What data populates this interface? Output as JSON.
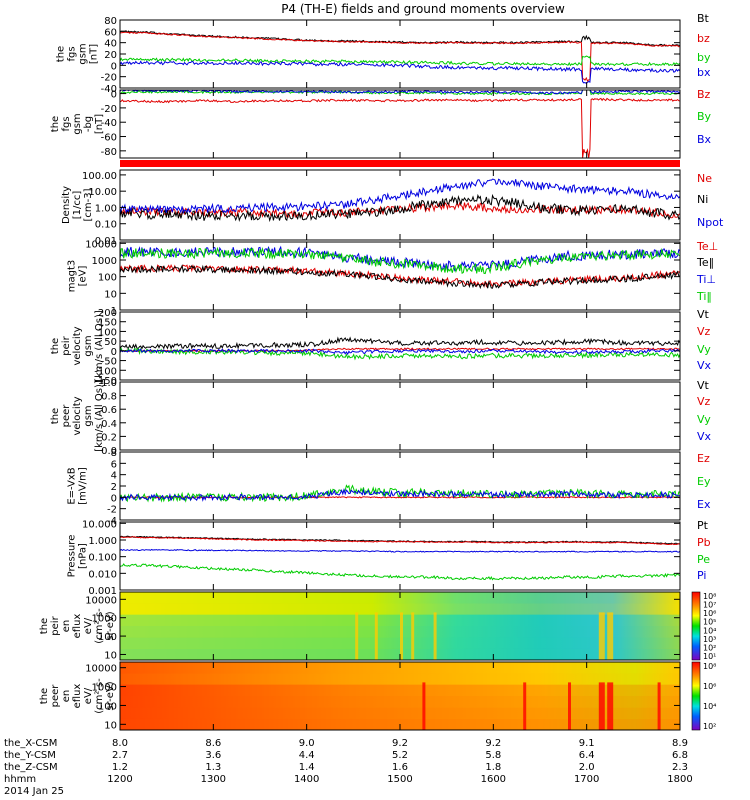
{
  "title": "P4 (TH-E) fields and ground moments overview",
  "colors": {
    "black": "#000000",
    "red": "#e00000",
    "green": "#00cc00",
    "blue": "#0000e0"
  },
  "chart_data": [
    {
      "type": "line",
      "id": "fgs_gsm",
      "ylabel": [
        "the",
        "fgs",
        "gsm",
        "[nT]"
      ],
      "ylim": [
        -40,
        80
      ],
      "yticks": [
        "80",
        "60",
        "40",
        "20",
        "0",
        "-20",
        "-40"
      ],
      "tick_values": [
        80,
        60,
        40,
        20,
        0,
        -20,
        -40
      ],
      "series": [
        {
          "name": "Bt",
          "color": "black",
          "values": [
            60,
            58,
            55,
            52,
            50,
            48,
            46,
            44,
            43,
            42,
            41,
            40,
            41,
            40,
            40,
            41,
            42,
            40,
            40,
            36,
            35
          ],
          "noise": 1.5,
          "spike": {
            "from": 6,
            "to": 48
          }
        },
        {
          "name": "bz",
          "color": "red",
          "values": [
            58,
            57,
            54,
            51,
            49,
            47,
            45,
            43,
            42,
            41,
            40,
            39,
            40,
            39,
            39,
            40,
            41,
            39,
            39,
            35,
            34
          ],
          "noise": 1.2,
          "spike": {
            "from": 4,
            "to": -25
          }
        },
        {
          "name": "by",
          "color": "green",
          "values": [
            10,
            10,
            10,
            9,
            9,
            8,
            8,
            7,
            7,
            6,
            6,
            5,
            4,
            3,
            3,
            2,
            2,
            2,
            2,
            2,
            2
          ],
          "noise": 2.5,
          "spike": {
            "from": 2,
            "to": 15
          }
        },
        {
          "name": "bx",
          "color": "blue",
          "values": [
            4,
            4,
            4,
            4,
            4,
            3,
            3,
            2,
            2,
            1,
            0,
            -2,
            -4,
            -5,
            -5,
            -6,
            -7,
            -6,
            -8,
            -9,
            -10
          ],
          "noise": 3,
          "spike": {
            "from": -8,
            "to": -30
          }
        }
      ]
    },
    {
      "type": "line",
      "id": "fgs_gsm_bg",
      "ylabel": [
        "the",
        "fgs",
        "gsm",
        "-bg",
        "[nT]"
      ],
      "ylim": [
        -90,
        5
      ],
      "yticks": [
        "0",
        "-20",
        "-40",
        "-60",
        "-80"
      ],
      "tick_values": [
        0,
        -20,
        -40,
        -60,
        -80
      ],
      "series": [
        {
          "name": "Bz",
          "color": "red",
          "values": [
            -10,
            -11,
            -11,
            -10,
            -11,
            -10,
            -10,
            -10,
            -9,
            -10,
            -10,
            -9,
            -9,
            -10,
            -9,
            -9,
            -9,
            -8,
            -9,
            -9,
            -9
          ],
          "noise": 1.5,
          "spike": {
            "from": -10,
            "to": -85
          }
        },
        {
          "name": "By",
          "color": "green",
          "values": [
            2,
            2,
            3,
            2,
            2,
            2,
            2,
            2,
            2,
            1,
            1,
            1,
            0,
            0,
            0,
            0,
            0,
            0,
            0,
            0,
            0
          ],
          "noise": 1.5,
          "spike": {
            "from": 0,
            "to": 8
          }
        },
        {
          "name": "Bx",
          "color": "blue",
          "values": [
            5,
            4,
            4,
            4,
            3,
            3,
            3,
            3,
            2,
            2,
            3,
            3,
            2,
            2,
            2,
            1,
            1,
            2,
            3,
            3,
            3
          ],
          "noise": 1.5,
          "spike": {
            "from": 2,
            "to": 10
          }
        }
      ]
    },
    {
      "type": "line",
      "id": "density",
      "scale": "log",
      "ylabel": [
        "Density",
        "[1/cc]",
        "[cm-3]"
      ],
      "ylim": [
        0.01,
        200
      ],
      "yticks": [
        "100.00",
        "10.00",
        "1.00",
        "0.10",
        "0.01"
      ],
      "tick_values": [
        100,
        10,
        1,
        0.1,
        0.01
      ],
      "series": [
        {
          "name": "Ne",
          "color": "red",
          "values": [
            0.7,
            0.6,
            0.5,
            0.5,
            0.5,
            0.5,
            0.4,
            0.5,
            0.5,
            0.6,
            0.8,
            1.0,
            1.2,
            1.0,
            0.8,
            0.8,
            0.7,
            0.7,
            0.8,
            0.5,
            0.3
          ],
          "noise": 0.25
        },
        {
          "name": "Ni",
          "color": "black",
          "values": [
            0.5,
            0.4,
            0.35,
            0.3,
            0.3,
            0.3,
            0.3,
            0.35,
            0.4,
            0.5,
            0.8,
            1.5,
            2.5,
            3.0,
            2.0,
            1.0,
            0.7,
            0.7,
            0.9,
            0.5,
            0.3
          ],
          "noise": 0.3
        },
        {
          "name": "Npot",
          "color": "blue",
          "values": [
            0.8,
            0.8,
            0.8,
            0.8,
            0.9,
            1.0,
            1.0,
            1.2,
            1.5,
            2.5,
            5,
            10,
            20,
            30,
            40,
            20,
            15,
            12,
            10,
            6,
            3
          ],
          "noise": 0.25
        }
      ]
    },
    {
      "type": "line",
      "id": "temperature",
      "scale": "log",
      "ylabel": [
        "magt3",
        "[eV]"
      ],
      "ylim": [
        1,
        12000
      ],
      "yticks": [
        "10000",
        "1000",
        "100",
        "10",
        "1"
      ],
      "tick_values": [
        10000,
        1000,
        100,
        10,
        1
      ],
      "series": [
        {
          "name": "Te⊥",
          "color": "red",
          "values": [
            300,
            300,
            320,
            300,
            280,
            260,
            250,
            200,
            150,
            120,
            80,
            60,
            50,
            40,
            40,
            50,
            60,
            70,
            80,
            120,
            150
          ],
          "noise": 0.2
        },
        {
          "name": "Te‖",
          "color": "black",
          "values": [
            280,
            280,
            300,
            280,
            260,
            240,
            230,
            180,
            140,
            110,
            70,
            50,
            40,
            30,
            35,
            45,
            55,
            65,
            70,
            100,
            130
          ],
          "noise": 0.2
        },
        {
          "name": "Ti⊥",
          "color": "blue",
          "values": [
            3000,
            3000,
            3000,
            3000,
            3000,
            3000,
            3000,
            2500,
            1500,
            1000,
            700,
            500,
            400,
            400,
            600,
            1200,
            1800,
            2000,
            2200,
            2400,
            2500
          ],
          "noise": 0.3
        },
        {
          "name": "Ti‖",
          "color": "green",
          "values": [
            2500,
            2500,
            2500,
            2500,
            2500,
            2500,
            2400,
            2000,
            1200,
            800,
            600,
            400,
            300,
            300,
            500,
            1000,
            1500,
            1800,
            2000,
            2200,
            2300
          ],
          "noise": 0.3
        }
      ]
    },
    {
      "type": "line",
      "id": "peir_velocity",
      "ylabel": [
        "the",
        "peir",
        "velocity",
        "gsm",
        "[km/s (All Qs)]"
      ],
      "ylim": [
        -150,
        200
      ],
      "yticks": [
        "200",
        "150",
        "100",
        "50",
        "0",
        "-50",
        "-100",
        "-150"
      ],
      "tick_values": [
        200,
        150,
        100,
        50,
        0,
        -50,
        -100,
        -150
      ],
      "series": [
        {
          "name": "Vt",
          "color": "black",
          "values": [
            20,
            20,
            25,
            25,
            25,
            30,
            30,
            35,
            60,
            50,
            40,
            40,
            40,
            45,
            40,
            40,
            45,
            50,
            40,
            40,
            40
          ],
          "noise": 12
        },
        {
          "name": "Vz",
          "color": "red",
          "values": [
            0,
            0,
            0,
            0,
            0,
            0,
            0,
            5,
            10,
            10,
            10,
            10,
            10,
            10,
            10,
            10,
            10,
            10,
            10,
            10,
            10
          ],
          "noise": 4
        },
        {
          "name": "Vy",
          "color": "green",
          "values": [
            0,
            0,
            -5,
            -5,
            -5,
            -10,
            -10,
            -15,
            -30,
            -30,
            -25,
            -25,
            -30,
            -25,
            -25,
            -25,
            -25,
            -20,
            -20,
            -20,
            -20
          ],
          "noise": 12
        },
        {
          "name": "Vx",
          "color": "blue",
          "values": [
            0,
            0,
            0,
            0,
            0,
            0,
            0,
            0,
            -10,
            -5,
            0,
            0,
            -5,
            0,
            0,
            -5,
            -5,
            -5,
            -5,
            0,
            0
          ],
          "noise": 8
        }
      ]
    },
    {
      "type": "line",
      "id": "peer_velocity",
      "ylabel": [
        "the",
        "peer",
        "velocity",
        "gsm",
        "[km/s (All Qs)]"
      ],
      "ylim": [
        0,
        1.0
      ],
      "yticks": [
        "1.0",
        "0.8",
        "0.6",
        "0.4",
        "0.2",
        "0.0"
      ],
      "tick_values": [
        1.0,
        0.8,
        0.6,
        0.4,
        0.2,
        0.0
      ],
      "series": [
        {
          "name": "Vt",
          "color": "black",
          "values": []
        },
        {
          "name": "Vz",
          "color": "red",
          "values": []
        },
        {
          "name": "Vy",
          "color": "green",
          "values": []
        },
        {
          "name": "Vx",
          "color": "blue",
          "values": []
        }
      ]
    },
    {
      "type": "line",
      "id": "efield",
      "ylabel": [
        "E=-VxB",
        "[mV/m]"
      ],
      "ylim": [
        -4,
        8
      ],
      "yticks": [
        "8",
        "6",
        "4",
        "2",
        "0",
        "-2",
        "-4"
      ],
      "tick_values": [
        8,
        6,
        4,
        2,
        0,
        -2,
        -4
      ],
      "series": [
        {
          "name": "Ez",
          "color": "red",
          "values": [
            0,
            0,
            0,
            0,
            0,
            0,
            0,
            0,
            0,
            0,
            0,
            0,
            0,
            0,
            0,
            0,
            0,
            0,
            0,
            0,
            0
          ],
          "noise": 0.1
        },
        {
          "name": "Ey",
          "color": "green",
          "values": [
            0,
            0,
            0,
            0,
            0,
            0,
            0,
            0.5,
            1.5,
            1.0,
            0.8,
            0.8,
            0.8,
            0.6,
            0.6,
            0.6,
            0.7,
            0.6,
            0.5,
            0.5,
            0.5
          ],
          "noise": 0.7
        },
        {
          "name": "Ex",
          "color": "blue",
          "values": [
            0,
            0,
            0,
            0,
            0,
            0,
            0,
            0.3,
            1.0,
            0.8,
            0.6,
            0.6,
            0.6,
            0.5,
            0.5,
            0.5,
            0.6,
            0.5,
            0.4,
            0.4,
            0.4
          ],
          "noise": 0.5
        }
      ]
    },
    {
      "type": "line",
      "id": "pressure",
      "scale": "log",
      "ylabel": [
        "Pressure",
        "[nPa]"
      ],
      "ylim": [
        0.001,
        12
      ],
      "yticks": [
        "10.000",
        "1.000",
        "0.100",
        "0.010",
        "0.001"
      ],
      "tick_values": [
        10,
        1,
        0.1,
        0.01,
        0.001
      ],
      "series": [
        {
          "name": "Pt",
          "color": "black",
          "values": [
            1.6,
            1.5,
            1.4,
            1.3,
            1.2,
            1.1,
            1.05,
            1.0,
            0.95,
            0.9,
            0.85,
            0.8,
            0.8,
            0.8,
            0.75,
            0.75,
            0.8,
            0.75,
            0.75,
            0.65,
            0.6
          ],
          "noise": 0.03
        },
        {
          "name": "Pb",
          "color": "red",
          "values": [
            1.5,
            1.4,
            1.3,
            1.2,
            1.1,
            1.0,
            0.95,
            0.9,
            0.85,
            0.8,
            0.8,
            0.75,
            0.75,
            0.72,
            0.7,
            0.7,
            0.75,
            0.7,
            0.7,
            0.6,
            0.55
          ],
          "noise": 0.03
        },
        {
          "name": "Pe",
          "color": "green",
          "values": [
            0.03,
            0.03,
            0.025,
            0.02,
            0.018,
            0.015,
            0.012,
            0.01,
            0.008,
            0.007,
            0.006,
            0.006,
            0.005,
            0.005,
            0.005,
            0.005,
            0.006,
            0.006,
            0.007,
            0.007,
            0.008
          ],
          "noise": 0.08
        },
        {
          "name": "Pi",
          "color": "blue",
          "values": [
            0.25,
            0.25,
            0.25,
            0.24,
            0.24,
            0.23,
            0.22,
            0.22,
            0.22,
            0.21,
            0.2,
            0.2,
            0.2,
            0.2,
            0.2,
            0.2,
            0.2,
            0.2,
            0.2,
            0.2,
            0.2
          ],
          "noise": 0.03
        }
      ]
    },
    {
      "type": "heatmap",
      "id": "peir_eflux",
      "ylabel": [
        "the",
        "peir",
        "en",
        "eflux",
        "eV/",
        "(cm²-s-",
        "sr-eV)"
      ],
      "yticks": [
        "10000",
        "1000",
        "100",
        "10"
      ],
      "tick_values": [
        10000,
        1000,
        100,
        10
      ],
      "ylim": [
        5,
        25000
      ],
      "colorbar": {
        "ticks": [
          "10⁸",
          "10⁷",
          "10⁶",
          "10⁵",
          "10⁴",
          "10³",
          "10²",
          "10¹"
        ]
      }
    },
    {
      "type": "heatmap",
      "id": "peer_eflux",
      "ylabel": [
        "the",
        "peer",
        "en",
        "eflux",
        "eV/",
        "(cm²-s-",
        "sr-eV)"
      ],
      "yticks": [
        "10000",
        "1000",
        "100",
        "10"
      ],
      "tick_values": [
        10000,
        1000,
        100,
        10
      ],
      "ylim": [
        5,
        20000
      ],
      "colorbar": {
        "ticks": [
          "10⁸",
          "10⁶",
          "10⁴",
          "10²"
        ]
      }
    }
  ],
  "x_axis": {
    "rows": [
      {
        "label": "the_X-CSM",
        "values": [
          "8.0",
          "8.6",
          "9.0",
          "9.2",
          "9.2",
          "9.1",
          "8.9"
        ]
      },
      {
        "label": "the_Y-CSM",
        "values": [
          "2.7",
          "3.6",
          "4.4",
          "5.2",
          "5.8",
          "6.4",
          "6.8"
        ]
      },
      {
        "label": "the_Z-CSM",
        "values": [
          "1.2",
          "1.3",
          "1.4",
          "1.6",
          "1.8",
          "2.0",
          "2.3"
        ]
      },
      {
        "label": "hhmm",
        "values": [
          "1200",
          "1300",
          "1400",
          "1500",
          "1600",
          "1700",
          "1800"
        ]
      }
    ],
    "date": "2014 Jan 25",
    "range": [
      1200,
      1800
    ]
  }
}
